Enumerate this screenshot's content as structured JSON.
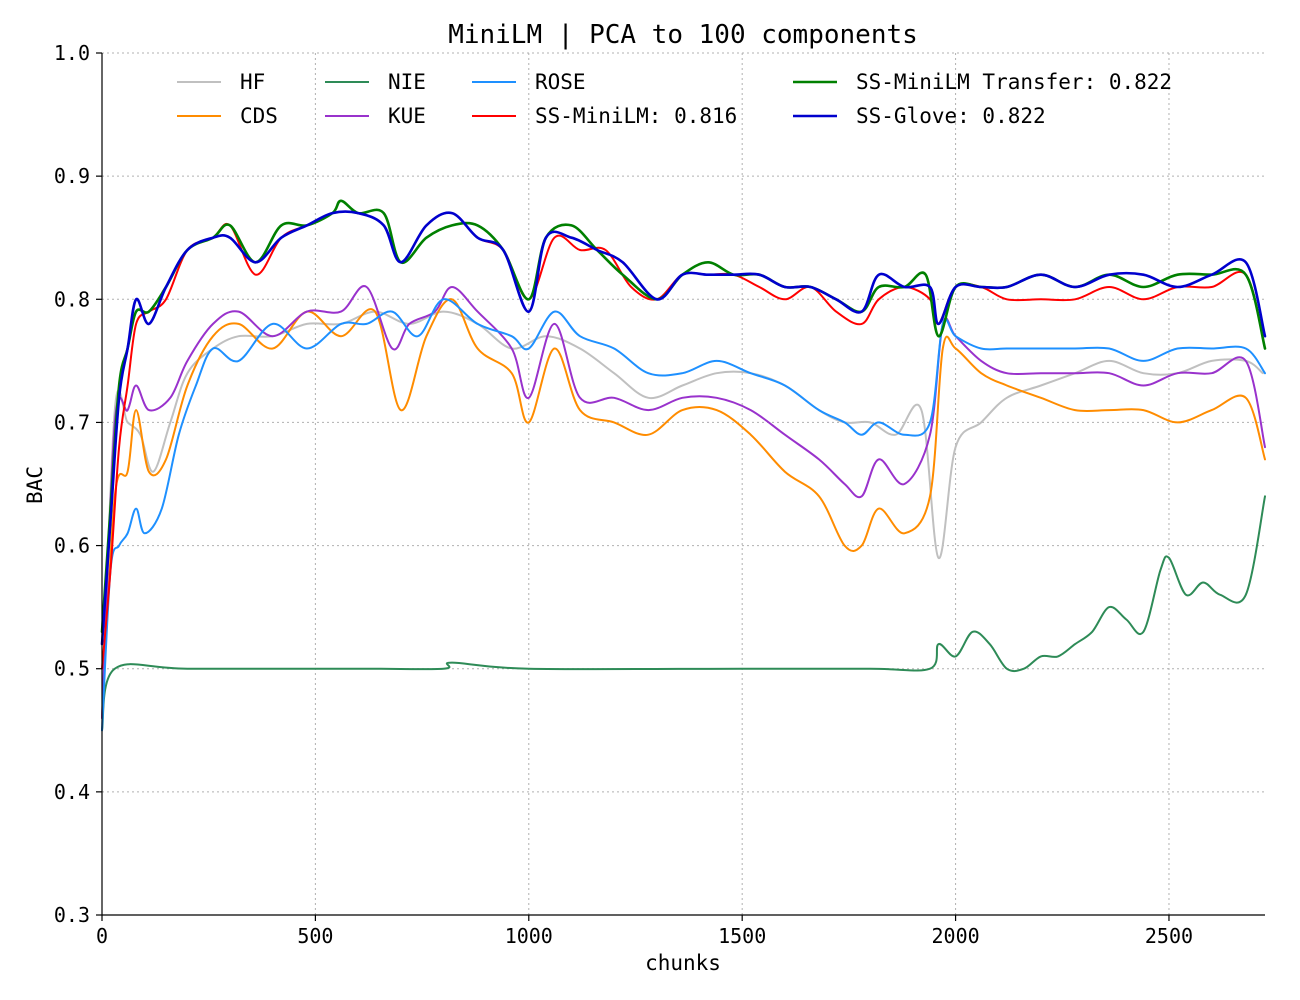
{
  "chart_data": {
    "type": "line",
    "title": "MiniLM | PCA to 100 components",
    "xlabel": "chunks",
    "ylabel": "BAC",
    "xlim": [
      0,
      2725
    ],
    "ylim": [
      0.3,
      1.0
    ],
    "xticks": [
      0,
      500,
      1000,
      1500,
      2000,
      2500
    ],
    "yticks": [
      0.3,
      0.4,
      0.5,
      0.6,
      0.7,
      0.8,
      0.9,
      1.0
    ],
    "xtick_labels": [
      "0",
      "500",
      "1000",
      "1500",
      "2000",
      "2500"
    ],
    "ytick_labels": [
      "0.3",
      "0.4",
      "0.5",
      "0.6",
      "0.7",
      "0.8",
      "0.9",
      "1.0"
    ],
    "grid": true,
    "legend_placement": "top",
    "series": [
      {
        "name": "HF",
        "color": "#c0c0c0",
        "x": [
          0,
          30,
          60,
          90,
          120,
          160,
          200,
          260,
          320,
          400,
          480,
          560,
          640,
          720,
          800,
          880,
          960,
          1040,
          1120,
          1200,
          1280,
          1360,
          1440,
          1520,
          1600,
          1680,
          1740,
          1800,
          1860,
          1920,
          1960,
          2000,
          2060,
          2120,
          2200,
          2280,
          2360,
          2440,
          2520,
          2600,
          2680,
          2720
        ],
        "y": [
          0.46,
          0.71,
          0.7,
          0.69,
          0.66,
          0.7,
          0.74,
          0.76,
          0.77,
          0.77,
          0.78,
          0.78,
          0.79,
          0.78,
          0.79,
          0.78,
          0.76,
          0.77,
          0.76,
          0.74,
          0.72,
          0.73,
          0.74,
          0.74,
          0.73,
          0.71,
          0.7,
          0.7,
          0.69,
          0.71,
          0.59,
          0.68,
          0.7,
          0.72,
          0.73,
          0.74,
          0.75,
          0.74,
          0.74,
          0.75,
          0.75,
          0.74
        ]
      },
      {
        "name": "CDS",
        "color": "#ff8c00",
        "x": [
          0,
          30,
          60,
          80,
          110,
          150,
          200,
          260,
          320,
          400,
          480,
          560,
          640,
          700,
          760,
          820,
          880,
          960,
          1000,
          1060,
          1120,
          1200,
          1280,
          1360,
          1440,
          1520,
          1600,
          1680,
          1740,
          1780,
          1820,
          1880,
          1940,
          1970,
          2000,
          2060,
          2120,
          2200,
          2280,
          2360,
          2440,
          2520,
          2600,
          2680,
          2725
        ],
        "y": [
          0.46,
          0.64,
          0.66,
          0.71,
          0.66,
          0.67,
          0.73,
          0.77,
          0.78,
          0.76,
          0.79,
          0.77,
          0.79,
          0.71,
          0.77,
          0.8,
          0.76,
          0.74,
          0.7,
          0.76,
          0.71,
          0.7,
          0.69,
          0.71,
          0.71,
          0.69,
          0.66,
          0.64,
          0.6,
          0.6,
          0.63,
          0.61,
          0.64,
          0.76,
          0.76,
          0.74,
          0.73,
          0.72,
          0.71,
          0.71,
          0.71,
          0.7,
          0.71,
          0.72,
          0.67
        ]
      },
      {
        "name": "NIE",
        "color": "#2e8b57",
        "x": [
          0,
          30,
          200,
          600,
          800,
          820,
          1000,
          1500,
          1800,
          1940,
          1960,
          2000,
          2040,
          2080,
          2120,
          2160,
          2200,
          2240,
          2280,
          2320,
          2360,
          2400,
          2440,
          2480,
          2500,
          2540,
          2580,
          2620,
          2680,
          2725
        ],
        "y": [
          0.45,
          0.5,
          0.5,
          0.5,
          0.5,
          0.505,
          0.5,
          0.5,
          0.5,
          0.5,
          0.52,
          0.51,
          0.53,
          0.52,
          0.5,
          0.5,
          0.51,
          0.51,
          0.52,
          0.53,
          0.55,
          0.54,
          0.53,
          0.58,
          0.59,
          0.56,
          0.57,
          0.56,
          0.56,
          0.64
        ]
      },
      {
        "name": "KUE",
        "color": "#9932cc",
        "x": [
          0,
          30,
          60,
          80,
          110,
          160,
          200,
          260,
          320,
          400,
          480,
          560,
          620,
          680,
          720,
          780,
          820,
          880,
          960,
          1000,
          1060,
          1120,
          1200,
          1280,
          1360,
          1440,
          1520,
          1600,
          1680,
          1740,
          1780,
          1820,
          1880,
          1940,
          1970,
          2000,
          2060,
          2120,
          2200,
          2280,
          2360,
          2440,
          2520,
          2600,
          2680,
          2725
        ],
        "y": [
          0.46,
          0.7,
          0.71,
          0.73,
          0.71,
          0.72,
          0.75,
          0.78,
          0.79,
          0.77,
          0.79,
          0.79,
          0.81,
          0.76,
          0.78,
          0.79,
          0.81,
          0.79,
          0.76,
          0.72,
          0.78,
          0.72,
          0.72,
          0.71,
          0.72,
          0.72,
          0.71,
          0.69,
          0.67,
          0.65,
          0.64,
          0.67,
          0.65,
          0.69,
          0.78,
          0.77,
          0.75,
          0.74,
          0.74,
          0.74,
          0.74,
          0.73,
          0.74,
          0.74,
          0.75,
          0.68
        ]
      },
      {
        "name": "ROSE",
        "color": "#1e90ff",
        "x": [
          0,
          20,
          40,
          60,
          80,
          100,
          140,
          180,
          220,
          260,
          320,
          400,
          480,
          560,
          620,
          680,
          740,
          800,
          880,
          960,
          1000,
          1060,
          1120,
          1200,
          1280,
          1360,
          1440,
          1520,
          1600,
          1680,
          1740,
          1780,
          1820,
          1880,
          1940,
          1970,
          2000,
          2060,
          2120,
          2200,
          2280,
          2360,
          2440,
          2520,
          2600,
          2680,
          2725
        ],
        "y": [
          0.45,
          0.58,
          0.6,
          0.61,
          0.63,
          0.61,
          0.63,
          0.69,
          0.73,
          0.76,
          0.75,
          0.78,
          0.76,
          0.78,
          0.78,
          0.79,
          0.77,
          0.8,
          0.78,
          0.77,
          0.76,
          0.79,
          0.77,
          0.76,
          0.74,
          0.74,
          0.75,
          0.74,
          0.73,
          0.71,
          0.7,
          0.69,
          0.7,
          0.69,
          0.7,
          0.78,
          0.77,
          0.76,
          0.76,
          0.76,
          0.76,
          0.76,
          0.75,
          0.76,
          0.76,
          0.76,
          0.74
        ]
      },
      {
        "name": "SS-MiniLM: 0.816",
        "color": "#ff0000",
        "x": [
          0,
          20,
          40,
          60,
          80,
          110,
          150,
          200,
          260,
          300,
          360,
          420,
          480,
          540,
          600,
          660,
          700,
          760,
          820,
          880,
          940,
          1000,
          1060,
          1120,
          1180,
          1240,
          1300,
          1360,
          1420,
          1480,
          1540,
          1600,
          1660,
          1720,
          1780,
          1820,
          1880,
          1940,
          1960,
          2000,
          2060,
          2120,
          2200,
          2280,
          2360,
          2440,
          2520,
          2600,
          2680,
          2725
        ],
        "y": [
          0.5,
          0.58,
          0.68,
          0.73,
          0.78,
          0.79,
          0.8,
          0.84,
          0.85,
          0.86,
          0.82,
          0.85,
          0.86,
          0.87,
          0.87,
          0.86,
          0.83,
          0.86,
          0.87,
          0.85,
          0.84,
          0.8,
          0.85,
          0.84,
          0.84,
          0.81,
          0.8,
          0.82,
          0.82,
          0.82,
          0.81,
          0.8,
          0.81,
          0.79,
          0.78,
          0.8,
          0.81,
          0.8,
          0.78,
          0.81,
          0.81,
          0.8,
          0.8,
          0.8,
          0.81,
          0.8,
          0.81,
          0.81,
          0.82,
          0.76
        ]
      },
      {
        "name": "SS-MiniLM Transfer: 0.822",
        "color": "#008000",
        "x": [
          0,
          20,
          40,
          60,
          80,
          110,
          150,
          200,
          260,
          300,
          360,
          420,
          480,
          540,
          560,
          600,
          660,
          700,
          760,
          820,
          880,
          940,
          1000,
          1040,
          1100,
          1160,
          1220,
          1300,
          1360,
          1420,
          1480,
          1540,
          1600,
          1660,
          1720,
          1780,
          1820,
          1880,
          1930,
          1960,
          2000,
          2060,
          2120,
          2200,
          2280,
          2360,
          2440,
          2520,
          2600,
          2680,
          2725
        ],
        "y": [
          0.53,
          0.63,
          0.73,
          0.76,
          0.79,
          0.79,
          0.81,
          0.84,
          0.85,
          0.86,
          0.83,
          0.86,
          0.86,
          0.87,
          0.88,
          0.87,
          0.87,
          0.83,
          0.85,
          0.86,
          0.86,
          0.84,
          0.8,
          0.85,
          0.86,
          0.84,
          0.82,
          0.8,
          0.82,
          0.83,
          0.82,
          0.82,
          0.81,
          0.81,
          0.8,
          0.79,
          0.81,
          0.81,
          0.82,
          0.77,
          0.81,
          0.81,
          0.81,
          0.82,
          0.81,
          0.82,
          0.81,
          0.82,
          0.82,
          0.82,
          0.76
        ]
      },
      {
        "name": "SS-Glove: 0.822",
        "color": "#0000cd",
        "x": [
          0,
          20,
          40,
          60,
          80,
          110,
          150,
          200,
          260,
          300,
          360,
          420,
          480,
          540,
          600,
          660,
          700,
          760,
          820,
          880,
          940,
          1000,
          1040,
          1100,
          1160,
          1220,
          1300,
          1360,
          1420,
          1480,
          1540,
          1600,
          1660,
          1720,
          1780,
          1820,
          1880,
          1940,
          1960,
          2000,
          2060,
          2120,
          2200,
          2280,
          2360,
          2440,
          2520,
          2600,
          2680,
          2725
        ],
        "y": [
          0.52,
          0.62,
          0.72,
          0.76,
          0.8,
          0.78,
          0.81,
          0.84,
          0.85,
          0.85,
          0.83,
          0.85,
          0.86,
          0.87,
          0.87,
          0.86,
          0.83,
          0.86,
          0.87,
          0.85,
          0.84,
          0.79,
          0.85,
          0.85,
          0.84,
          0.83,
          0.8,
          0.82,
          0.82,
          0.82,
          0.82,
          0.81,
          0.81,
          0.8,
          0.79,
          0.82,
          0.81,
          0.81,
          0.78,
          0.81,
          0.81,
          0.81,
          0.82,
          0.81,
          0.82,
          0.82,
          0.81,
          0.82,
          0.83,
          0.77
        ]
      }
    ]
  }
}
